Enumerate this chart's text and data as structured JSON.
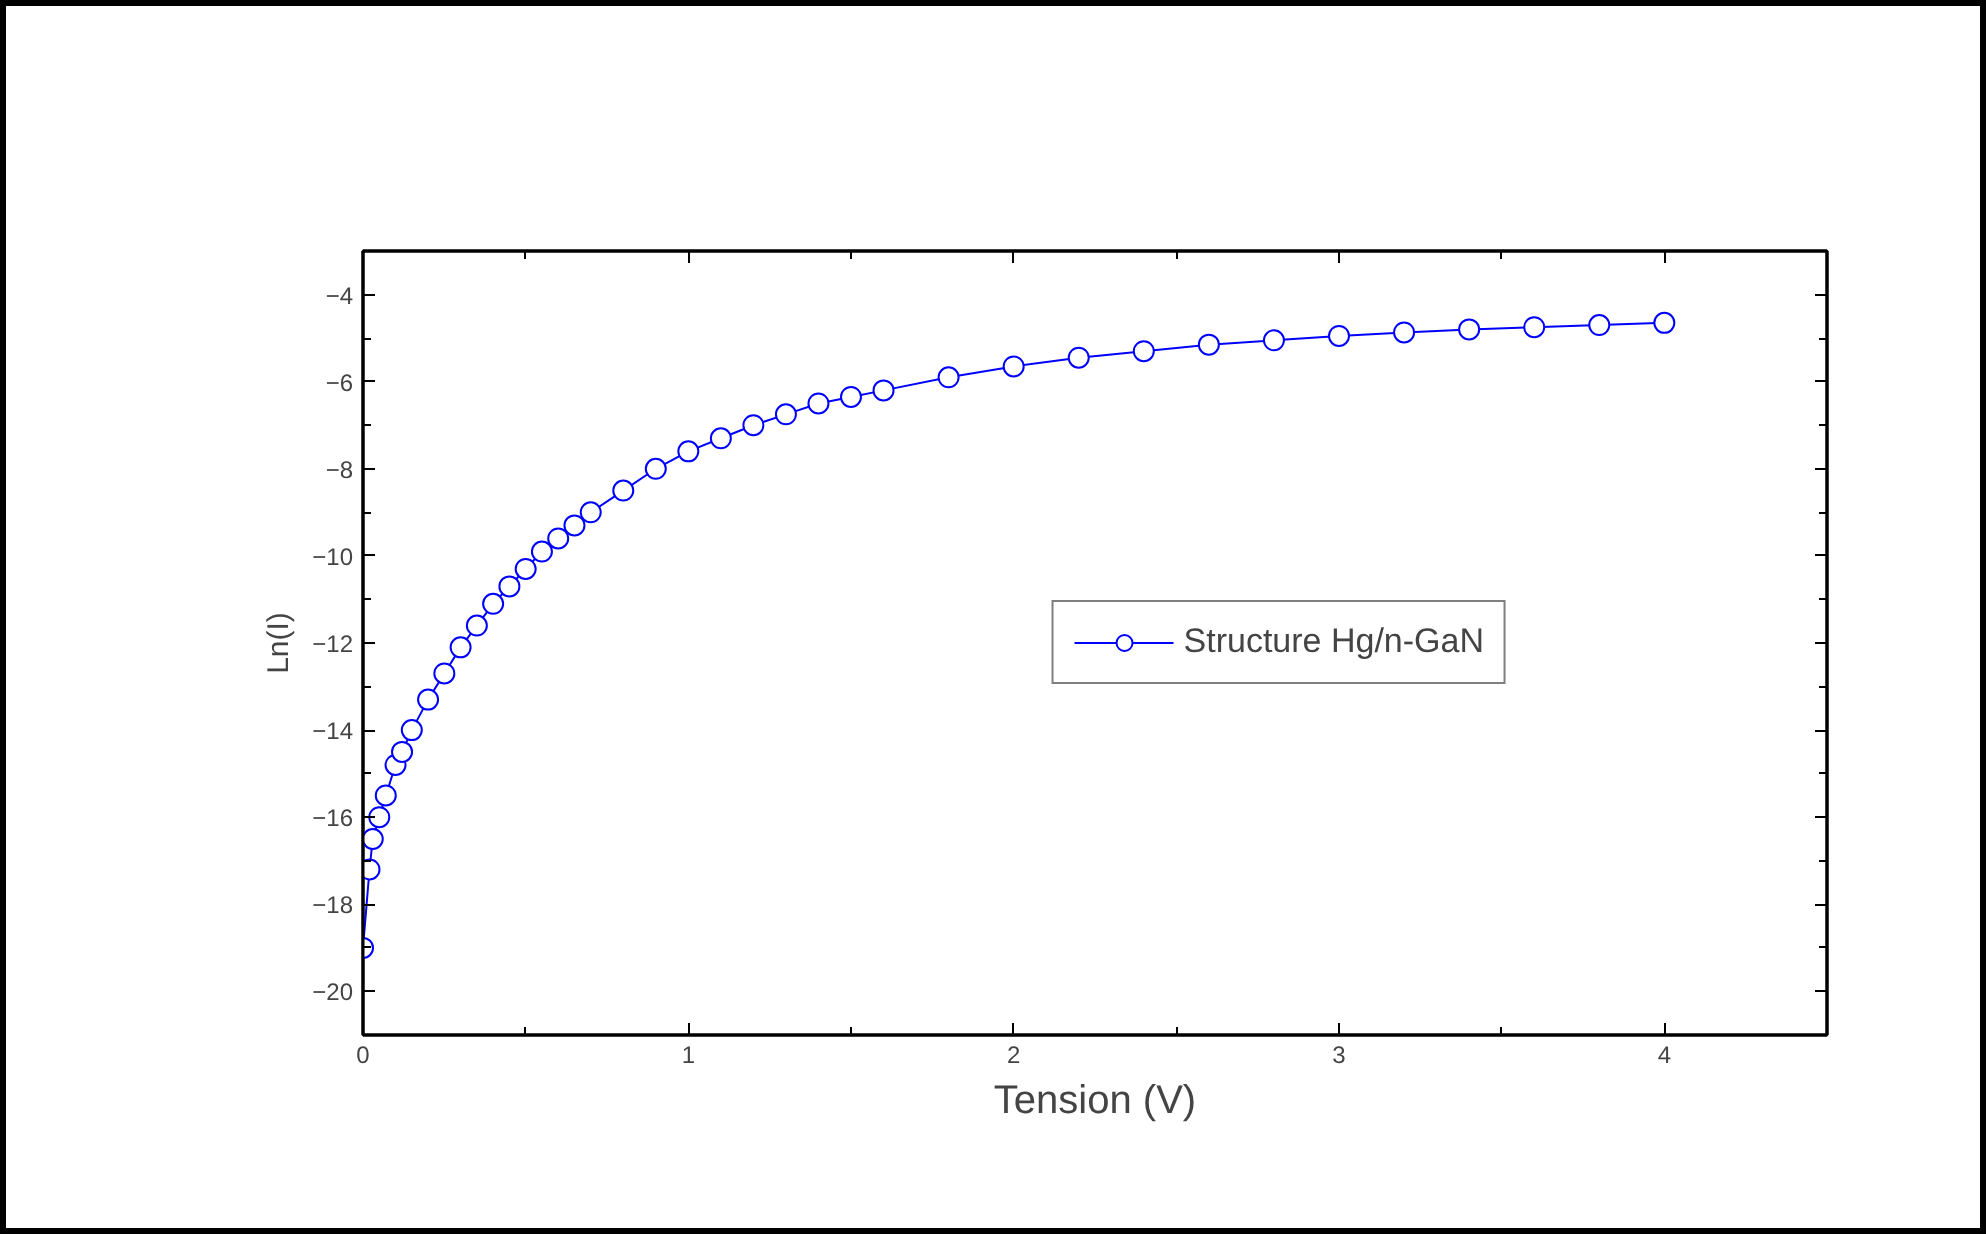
{
  "chart_data": {
    "type": "line",
    "xlabel": "Tension (V)",
    "ylabel": "Ln(I)",
    "xlim": [
      0,
      4.5
    ],
    "xticks": [
      0,
      1,
      2,
      3,
      4
    ],
    "ylim": [
      -21,
      -3
    ],
    "yticks": [
      -20,
      -18,
      -16,
      -14,
      -12,
      -10,
      -8,
      -6,
      -4
    ],
    "marker": "circle",
    "line_style": "solid",
    "grid": false,
    "legend": "right",
    "series": [
      {
        "name": "Structure Hg/n-GaN",
        "color": "#0000ff",
        "x": [
          0,
          0.02,
          0.03,
          0.05,
          0.07,
          0.1,
          0.12,
          0.15,
          0.2,
          0.25,
          0.3,
          0.35,
          0.4,
          0.45,
          0.5,
          0.55,
          0.6,
          0.65,
          0.7,
          0.8,
          0.9,
          1.0,
          1.1,
          1.2,
          1.3,
          1.4,
          1.5,
          1.6,
          1.8,
          2.0,
          2.2,
          2.4,
          2.6,
          2.8,
          3.0,
          3.2,
          3.4,
          3.6,
          3.8,
          4.0
        ],
        "values": [
          -19.0,
          -17.2,
          -16.5,
          -16.0,
          -15.5,
          -14.8,
          -14.5,
          -14.0,
          -13.3,
          -12.7,
          -12.1,
          -11.6,
          -11.1,
          -10.7,
          -10.3,
          -9.9,
          -9.6,
          -9.3,
          -9.0,
          -8.5,
          -8.0,
          -7.6,
          -7.3,
          -7.0,
          -6.75,
          -6.5,
          -6.35,
          -6.2,
          -5.9,
          -5.65,
          -5.45,
          -5.3,
          -5.15,
          -5.05,
          -4.95,
          -4.87,
          -4.8,
          -4.75,
          -4.7,
          -4.65
        ]
      }
    ]
  }
}
